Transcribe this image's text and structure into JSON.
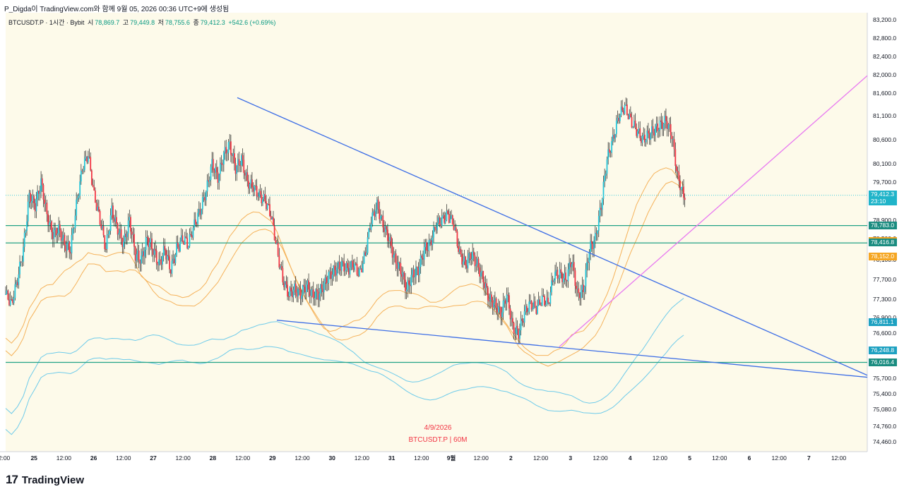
{
  "header": {
    "published_by": "P_Digda이 TradingView.com와 함께 9월 05, 2026 00:36 UTC+9에 생성됨"
  },
  "legend": {
    "symbol": "BTCUSDT.P · 1시간 · Bybit",
    "open_label": "시",
    "open_value": "78,869.7",
    "high_label": "고",
    "high_value": "79,449.8",
    "low_label": "저",
    "low_value": "78,755.6",
    "close_label": "종",
    "close_value": "79,412.3",
    "change": "+542.6 (+0.69%)"
  },
  "watermark": {
    "date": "4/9/2026",
    "symbol": "BTCUSDT.P | 60M"
  },
  "footer": {
    "brand": "TradingView",
    "logo_icon": "tradingview-logo-icon"
  },
  "colors": {
    "up": "#26c6da",
    "down": "#f23645",
    "trendline": "#3d6ee6",
    "uptrend": "#e879f0",
    "hline": "#22a286",
    "band_orange": "#f5b25a",
    "band_blue": "#6ecbea",
    "label_teal": "#1a8c80",
    "label_orange": "#f5a623",
    "label_cyan": "#20b4c9",
    "label_sky": "#1da1c1"
  },
  "chart_data": {
    "type": "candlestick",
    "symbol": "BTCUSDT.P",
    "interval": "1시간",
    "exchange": "Bybit",
    "ylim": [
      74200,
      83300
    ],
    "y_ticks": [
      83200,
      82800,
      82400,
      82000,
      81600,
      81100,
      80600,
      80100,
      79700,
      79300,
      78900,
      78500,
      78100,
      77700,
      77300,
      76900,
      76600,
      75700,
      75400,
      75080,
      74760,
      74460
    ],
    "y_tick_labels": [
      "83,200.0",
      "82,800.0",
      "82,400.0",
      "82,000.0",
      "81,600.0",
      "81,100.0",
      "80,600.0",
      "80,100.0",
      "79,700.0",
      "79,300.0",
      "78,900.0",
      "78,500.0",
      "78,100.0",
      "77,700.0",
      "77,300.0",
      "76,900.0",
      "76,600.0",
      "75,700.0",
      "75,400.0",
      "75,080.0",
      "74,760.0",
      "74,460.0"
    ],
    "x_tick_labels": [
      "2:00",
      "25",
      "12:00",
      "26",
      "12:00",
      "27",
      "12:00",
      "28",
      "12:00",
      "29",
      "12:00",
      "30",
      "12:00",
      "31",
      "12:00",
      "9월",
      "12:00",
      "2",
      "12:00",
      "3",
      "12:00",
      "4",
      "12:00",
      "5",
      "12:00",
      "6",
      "12:00",
      "7",
      "12:00"
    ],
    "candles_close_path": [
      [
        0,
        77400
      ],
      [
        5,
        77200
      ],
      [
        10,
        77700
      ],
      [
        15,
        78300
      ],
      [
        20,
        79400
      ],
      [
        25,
        79200
      ],
      [
        30,
        79700
      ],
      [
        35,
        79000
      ],
      [
        40,
        78600
      ],
      [
        45,
        78700
      ],
      [
        50,
        78400
      ],
      [
        55,
        78300
      ],
      [
        60,
        79200
      ],
      [
        65,
        80000
      ],
      [
        70,
        80300
      ],
      [
        75,
        79400
      ],
      [
        80,
        78900
      ],
      [
        85,
        78300
      ],
      [
        90,
        79100
      ],
      [
        95,
        78700
      ],
      [
        100,
        78400
      ],
      [
        105,
        78900
      ],
      [
        110,
        78200
      ],
      [
        115,
        78100
      ],
      [
        120,
        78500
      ],
      [
        125,
        78300
      ],
      [
        130,
        78000
      ],
      [
        135,
        78300
      ],
      [
        140,
        77900
      ],
      [
        145,
        78300
      ],
      [
        150,
        78500
      ],
      [
        155,
        78400
      ],
      [
        160,
        78800
      ],
      [
        165,
        79100
      ],
      [
        170,
        79500
      ],
      [
        175,
        80100
      ],
      [
        180,
        79800
      ],
      [
        185,
        80300
      ],
      [
        190,
        80500
      ],
      [
        195,
        80000
      ],
      [
        200,
        80200
      ],
      [
        205,
        79700
      ],
      [
        210,
        79600
      ],
      [
        215,
        79400
      ],
      [
        220,
        79300
      ],
      [
        225,
        79000
      ],
      [
        230,
        78300
      ],
      [
        235,
        77700
      ],
      [
        240,
        77400
      ],
      [
        245,
        77500
      ],
      [
        250,
        77400
      ],
      [
        255,
        77600
      ],
      [
        260,
        77400
      ],
      [
        265,
        77400
      ],
      [
        270,
        77600
      ],
      [
        275,
        77800
      ],
      [
        280,
        77900
      ],
      [
        285,
        78000
      ],
      [
        290,
        77900
      ],
      [
        295,
        78000
      ],
      [
        300,
        77800
      ],
      [
        305,
        78200
      ],
      [
        310,
        78900
      ],
      [
        315,
        79200
      ],
      [
        320,
        78800
      ],
      [
        325,
        78500
      ],
      [
        330,
        78100
      ],
      [
        335,
        77900
      ],
      [
        340,
        77500
      ],
      [
        345,
        77800
      ],
      [
        350,
        77900
      ],
      [
        355,
        78300
      ],
      [
        360,
        78400
      ],
      [
        365,
        78800
      ],
      [
        370,
        78900
      ],
      [
        375,
        79000
      ],
      [
        380,
        78800
      ],
      [
        385,
        78200
      ],
      [
        390,
        78000
      ],
      [
        395,
        78200
      ],
      [
        400,
        78000
      ],
      [
        405,
        77700
      ],
      [
        410,
        77300
      ],
      [
        415,
        77200
      ],
      [
        420,
        77000
      ],
      [
        425,
        77400
      ],
      [
        430,
        76700
      ],
      [
        435,
        76600
      ],
      [
        440,
        77000
      ],
      [
        445,
        77200
      ],
      [
        450,
        77100
      ],
      [
        455,
        77300
      ],
      [
        460,
        77200
      ],
      [
        465,
        77800
      ],
      [
        470,
        77800
      ],
      [
        475,
        77700
      ],
      [
        480,
        78100
      ],
      [
        485,
        77400
      ],
      [
        490,
        77500
      ],
      [
        495,
        78300
      ],
      [
        500,
        78500
      ],
      [
        505,
        79200
      ],
      [
        510,
        80200
      ],
      [
        515,
        80600
      ],
      [
        520,
        81100
      ],
      [
        525,
        81300
      ],
      [
        530,
        81000
      ],
      [
        535,
        80800
      ],
      [
        540,
        80600
      ],
      [
        545,
        80700
      ],
      [
        550,
        80800
      ],
      [
        555,
        80900
      ],
      [
        560,
        81000
      ],
      [
        565,
        80700
      ],
      [
        570,
        79800
      ],
      [
        575,
        79412
      ]
    ],
    "price_labels": [
      {
        "value": "79,412.3",
        "sub": "23:10",
        "kind": "current"
      },
      {
        "value": "78,783.0",
        "kind": "hline"
      },
      {
        "value": "78,449.6",
        "kind": "band"
      },
      {
        "value": "78,416.8",
        "kind": "hline"
      },
      {
        "value": "78,152.0",
        "kind": "band"
      },
      {
        "value": "76,811.1",
        "kind": "band2"
      },
      {
        "value": "76,248.8",
        "kind": "band2"
      },
      {
        "value": "76,016.4",
        "kind": "hline"
      }
    ],
    "horizontal_lines": [
      78783.0,
      78416.8,
      76016.4
    ],
    "trendlines": [
      {
        "from": [
          336,
          81500
        ],
        "to": [
          1228,
          75760
        ]
      },
      {
        "from": [
          392,
          76850
        ],
        "to": [
          1228,
          75720
        ]
      },
      {
        "from": [
          792,
          76330
        ],
        "to": [
          1228,
          81980
        ],
        "color": "uptrend"
      }
    ]
  }
}
